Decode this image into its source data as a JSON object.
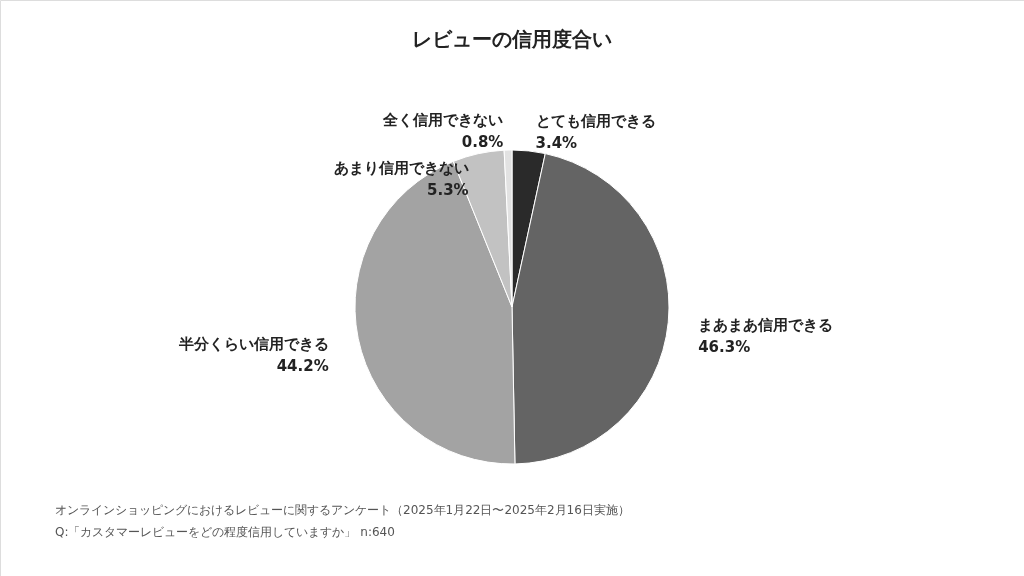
{
  "chart_data": {
    "type": "pie",
    "title": "レビューの信用度合い",
    "categories": [
      "とても信用できる",
      "まあまあ信用できる",
      "半分くらい信用できる",
      "あまり信用できない",
      "全く信用できない"
    ],
    "values": [
      3.4,
      46.3,
      44.2,
      5.3,
      0.8
    ],
    "colors": [
      "#2a2a2a",
      "#646464",
      "#a3a3a3",
      "#c2c2c2",
      "#e2e2e2"
    ],
    "value_labels": [
      "3.4%",
      "46.3%",
      "44.2%",
      "5.3%",
      "0.8%"
    ],
    "legend": false,
    "annotations": [
      "オンラインショッピングにおけるレビューに関するアンケート（2025年1月22日〜2025年2月16日実施）",
      "Q:「カスタマーレビューをどの程度信用していますか」 n:640"
    ]
  }
}
